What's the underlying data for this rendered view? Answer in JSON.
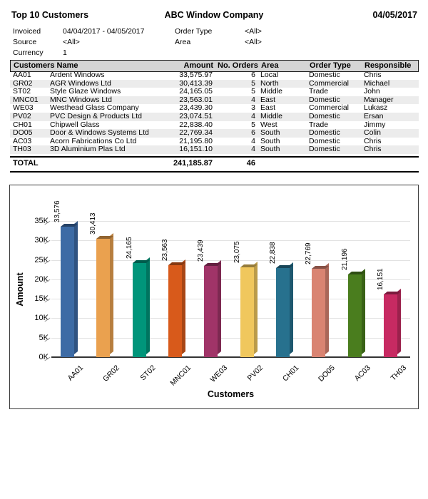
{
  "header": {
    "title_left": "Top 10 Customers",
    "title_center": "ABC Window Company",
    "title_right": "04/05/2017"
  },
  "filters": [
    {
      "label": "Invoiced",
      "value": "04/04/2017 - 04/05/2017",
      "label2": "Order Type",
      "value2": "<All>"
    },
    {
      "label": "Source",
      "value": "<All>",
      "label2": "Area",
      "value2": "<All>"
    },
    {
      "label": "Currency",
      "value": "1",
      "label2": "",
      "value2": ""
    }
  ],
  "table": {
    "headers": {
      "customers_name": "Customers Name",
      "amount": "Amount",
      "no_orders": "No. Orders",
      "area": "Area",
      "order_type": "Order Type",
      "responsible": "Responsible"
    },
    "rows": [
      {
        "code": "AA01",
        "name": "Ardent Windows",
        "amount": "33,575.97",
        "orders": "6",
        "area": "Local",
        "order_type": "Domestic",
        "responsible": "Chris"
      },
      {
        "code": "GR02",
        "name": "AGR Windows Ltd",
        "amount": "30,413.39",
        "orders": "5",
        "area": "North",
        "order_type": "Commercial",
        "responsible": "Michael"
      },
      {
        "code": "ST02",
        "name": "Style Glaze Windows",
        "amount": "24,165.05",
        "orders": "5",
        "area": "Middle",
        "order_type": "Trade",
        "responsible": "John"
      },
      {
        "code": "MNC01",
        "name": "MNC Windows Ltd",
        "amount": "23,563.01",
        "orders": "4",
        "area": "East",
        "order_type": "Domestic",
        "responsible": "Manager"
      },
      {
        "code": "WE03",
        "name": "Westhead Glass Company",
        "amount": "23,439.30",
        "orders": "3",
        "area": "East",
        "order_type": "Commercial",
        "responsible": "Lukasz"
      },
      {
        "code": "PV02",
        "name": "PVC Design & Products Ltd",
        "amount": "23,074.51",
        "orders": "4",
        "area": "Middle",
        "order_type": "Domestic",
        "responsible": "Ersan"
      },
      {
        "code": "CH01",
        "name": "Chipwell Glass",
        "amount": "22,838.40",
        "orders": "5",
        "area": "West",
        "order_type": "Trade",
        "responsible": "Jimmy"
      },
      {
        "code": "DO05",
        "name": "Door & Windows Systems Ltd",
        "amount": "22,769.34",
        "orders": "6",
        "area": "South",
        "order_type": "Domestic",
        "responsible": "Colin"
      },
      {
        "code": "AC03",
        "name": "Acorn Fabrications Co Ltd",
        "amount": "21,195.80",
        "orders": "4",
        "area": "South",
        "order_type": "Domestic",
        "responsible": "Chris"
      },
      {
        "code": "TH03",
        "name": "3D Aluminium Plas Ltd",
        "amount": "16,151.10",
        "orders": "4",
        "area": "South",
        "order_type": "Domestic",
        "responsible": "Chris"
      }
    ],
    "total": {
      "label": "TOTAL",
      "amount": "241,185.87",
      "orders": "46"
    }
  },
  "chart_data": {
    "type": "bar",
    "title": "",
    "xlabel": "Customers",
    "ylabel": "Amount",
    "categories": [
      "AA01",
      "GR02",
      "ST02",
      "MNC01",
      "WE03",
      "PV02",
      "CH01",
      "DO05",
      "AC03",
      "TH03"
    ],
    "values": [
      33575.97,
      30413.39,
      24165.05,
      23563.01,
      23439.3,
      23074.51,
      22838.4,
      22769.34,
      21195.8,
      16151.1
    ],
    "value_labels": [
      "33,576",
      "30,413",
      "24,165",
      "23,563",
      "23,439",
      "23,075",
      "22,838",
      "22,769",
      "21,196",
      "16,151"
    ],
    "colors": [
      "#3d6ba5",
      "#eaa14f",
      "#00957a",
      "#d85a1b",
      "#a03468",
      "#f0c75d",
      "#27718e",
      "#d98472",
      "#4a7d1e",
      "#c72a62"
    ],
    "ylim": [
      0,
      35000
    ],
    "ytick_step": 5000,
    "ytick_labels": [
      "0K",
      "5K",
      "10K",
      "15K",
      "20K",
      "25K",
      "30K",
      "35K"
    ],
    "grid": true,
    "legend": "none",
    "style": "3d-column"
  }
}
